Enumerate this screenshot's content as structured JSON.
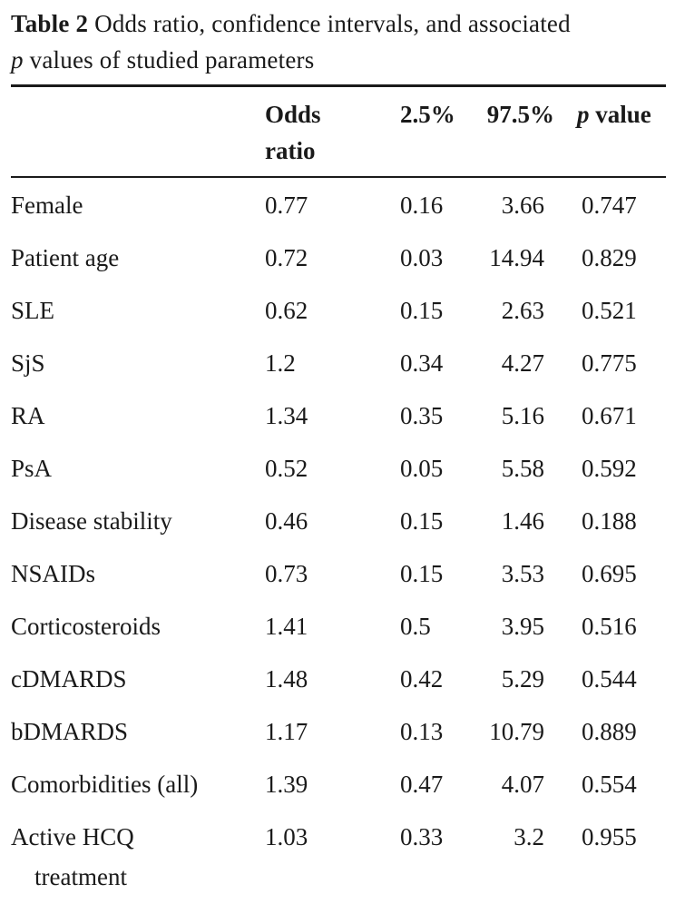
{
  "caption": {
    "label": "Table 2",
    "text_before_p": "Odds ratio, confidence intervals, and associated",
    "p_symbol": "p",
    "text_after_p": "values of studied parameters"
  },
  "headers": {
    "odds_line1": "Odds",
    "odds_line2": "ratio",
    "lower": "2.5%",
    "upper": "97.5%",
    "p_symbol": "p",
    "p_word": "value"
  },
  "rows": [
    {
      "param": "Female",
      "odds": "0.77",
      "lower": "0.16",
      "upper": "3.66",
      "p": "0.747"
    },
    {
      "param": "Patient age",
      "odds": "0.72",
      "lower": "0.03",
      "upper": "14.94",
      "p": "0.829"
    },
    {
      "param": "SLE",
      "odds": "0.62",
      "lower": "0.15",
      "upper": "2.63",
      "p": "0.521"
    },
    {
      "param": "SjS",
      "odds": "1.2",
      "lower": "0.34",
      "upper": "4.27",
      "p": "0.775"
    },
    {
      "param": "RA",
      "odds": "1.34",
      "lower": "0.35",
      "upper": "5.16",
      "p": "0.671"
    },
    {
      "param": "PsA",
      "odds": "0.52",
      "lower": "0.05",
      "upper": "5.58",
      "p": "0.592"
    },
    {
      "param": "Disease stability",
      "odds": "0.46",
      "lower": "0.15",
      "upper": "1.46",
      "p": "0.188"
    },
    {
      "param": "NSAIDs",
      "odds": "0.73",
      "lower": "0.15",
      "upper": "3.53",
      "p": "0.695"
    },
    {
      "param": "Corticosteroids",
      "odds": "1.41",
      "lower": "0.5",
      "upper": "3.95",
      "p": "0.516"
    },
    {
      "param": "cDMARDS",
      "odds": "1.48",
      "lower": "0.42",
      "upper": "5.29",
      "p": "0.544"
    },
    {
      "param": "bDMARDS",
      "odds": "1.17",
      "lower": "0.13",
      "upper": "10.79",
      "p": "0.889"
    },
    {
      "param": "Comorbidities (all)",
      "odds": "1.39",
      "lower": "0.47",
      "upper": "4.07",
      "p": "0.554"
    },
    {
      "param": "Active HCQ",
      "param_cont": "treatment",
      "odds": "1.03",
      "lower": "0.33",
      "upper": "3.2",
      "p": "0.955"
    }
  ]
}
